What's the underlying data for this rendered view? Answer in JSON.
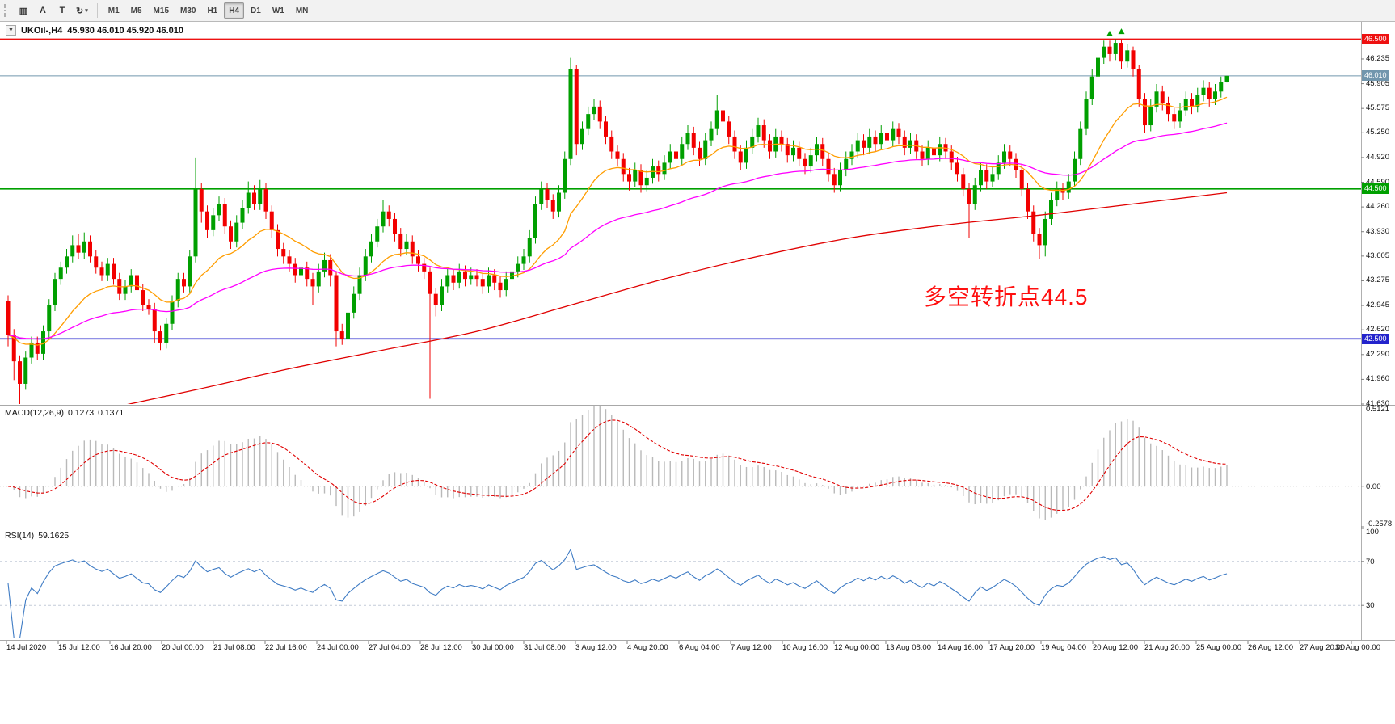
{
  "toolbar": {
    "icons": [
      {
        "name": "bar-style-icon",
        "glyph": "▥"
      },
      {
        "name": "text-annotation-icon",
        "glyph": "A"
      },
      {
        "name": "text-frame-icon",
        "glyph": "T"
      },
      {
        "name": "refresh-tools-icon",
        "glyph": "↻"
      }
    ],
    "caret": "▾",
    "timeframes": [
      "M1",
      "M5",
      "M15",
      "M30",
      "H1",
      "H4",
      "D1",
      "W1",
      "MN"
    ],
    "active_timeframe": "H4"
  },
  "chart_data": {
    "type": "candlestick",
    "symbol": "UKOil-",
    "timeframe": "H4",
    "readout_symbol": "UKOil-,H4",
    "readout_ohlc": "45.930 46.010 45.920 46.010",
    "collapse_glyph": "▼",
    "colors": {
      "up": "#009f00",
      "down": "#f20000"
    },
    "annotation": {
      "text": "多空转折点44.5",
      "color": "#ff0f0f"
    },
    "price_axis_ticks": [
      46.235,
      45.905,
      45.575,
      45.25,
      44.92,
      44.59,
      44.26,
      43.93,
      43.605,
      43.275,
      42.945,
      42.62,
      42.29,
      41.96,
      41.63
    ],
    "price_lines": [
      {
        "value": 46.5,
        "label": "46.500",
        "color": "#ee1111"
      },
      {
        "value": 44.5,
        "label": "44.500",
        "color": "#00a000"
      },
      {
        "value": 42.5,
        "label": "42.500",
        "color": "#2323cc"
      }
    ],
    "current_price": {
      "value": 46.01,
      "label": "46.010",
      "color": "#7296ad"
    },
    "ma_lines": [
      {
        "name": "ma-fast-orange",
        "color": "#ff9d00",
        "period": 18
      },
      {
        "name": "ma-mid-magenta",
        "color": "#ff00ff",
        "period": 55
      },
      {
        "name": "ma-slow-red",
        "color": "#e00000",
        "anchors": [
          [
            0,
            41.3
          ],
          [
            16,
            41.55
          ],
          [
            32,
            41.82
          ],
          [
            48,
            42.1
          ],
          [
            64,
            42.35
          ],
          [
            80,
            42.6
          ],
          [
            96,
            42.95
          ],
          [
            112,
            43.3
          ],
          [
            128,
            43.6
          ],
          [
            144,
            43.85
          ],
          [
            160,
            44.02
          ],
          [
            176,
            44.15
          ],
          [
            192,
            44.3
          ],
          [
            208,
            44.45
          ]
        ]
      }
    ],
    "markers": [
      {
        "index": 188,
        "price": 46.57,
        "color": "#00a000",
        "shape": "up"
      },
      {
        "index": 190,
        "price": 46.6,
        "color": "#00a000",
        "shape": "up"
      }
    ],
    "candles": [
      [
        43.0,
        43.08,
        42.4,
        42.55
      ],
      [
        42.55,
        42.63,
        41.95,
        42.2
      ],
      [
        42.2,
        42.28,
        41.63,
        41.9
      ],
      [
        41.9,
        42.33,
        41.82,
        42.25
      ],
      [
        42.25,
        42.53,
        42.17,
        42.45
      ],
      [
        42.45,
        42.53,
        42.22,
        42.3
      ],
      [
        42.3,
        42.68,
        42.22,
        42.6
      ],
      [
        42.6,
        43.03,
        42.52,
        42.95
      ],
      [
        42.95,
        43.38,
        42.87,
        43.3
      ],
      [
        43.3,
        43.53,
        43.22,
        43.45
      ],
      [
        43.45,
        43.7,
        43.37,
        43.6
      ],
      [
        43.6,
        43.88,
        43.52,
        43.75
      ],
      [
        43.75,
        43.9,
        43.57,
        43.65
      ],
      [
        43.65,
        43.92,
        43.57,
        43.8
      ],
      [
        43.8,
        43.88,
        43.52,
        43.6
      ],
      [
        43.6,
        43.68,
        43.37,
        43.45
      ],
      [
        43.45,
        43.53,
        43.27,
        43.35
      ],
      [
        43.35,
        43.58,
        43.27,
        43.5
      ],
      [
        43.5,
        43.58,
        43.22,
        43.3
      ],
      [
        43.3,
        43.38,
        43.02,
        43.1
      ],
      [
        43.1,
        43.28,
        43.02,
        43.2
      ],
      [
        43.2,
        43.43,
        43.12,
        43.35
      ],
      [
        43.35,
        43.43,
        43.07,
        43.15
      ],
      [
        43.15,
        43.23,
        42.87,
        42.95
      ],
      [
        42.95,
        43.03,
        42.82,
        42.9
      ],
      [
        42.9,
        42.98,
        42.45,
        42.6
      ],
      [
        42.6,
        42.68,
        42.35,
        42.45
      ],
      [
        42.45,
        42.78,
        42.37,
        42.7
      ],
      [
        42.7,
        43.08,
        42.62,
        43.0
      ],
      [
        43.0,
        43.38,
        42.92,
        43.3
      ],
      [
        43.3,
        43.38,
        43.12,
        43.2
      ],
      [
        43.2,
        43.68,
        43.12,
        43.6
      ],
      [
        43.6,
        44.92,
        43.52,
        44.5
      ],
      [
        44.5,
        44.58,
        44.05,
        44.2
      ],
      [
        44.2,
        44.28,
        43.85,
        43.95
      ],
      [
        43.95,
        44.25,
        43.87,
        44.15
      ],
      [
        44.15,
        44.4,
        44.07,
        44.3
      ],
      [
        44.3,
        44.38,
        43.9,
        44.0
      ],
      [
        44.0,
        44.08,
        43.7,
        43.8
      ],
      [
        43.8,
        44.15,
        43.72,
        44.05
      ],
      [
        44.05,
        44.35,
        43.97,
        44.25
      ],
      [
        44.25,
        44.6,
        44.17,
        44.45
      ],
      [
        44.45,
        44.55,
        44.22,
        44.3
      ],
      [
        44.3,
        44.62,
        44.22,
        44.5
      ],
      [
        44.5,
        44.58,
        44.1,
        44.2
      ],
      [
        44.2,
        44.28,
        43.85,
        43.95
      ],
      [
        43.95,
        44.03,
        43.6,
        43.7
      ],
      [
        43.7,
        43.78,
        43.5,
        43.6
      ],
      [
        43.6,
        43.68,
        43.4,
        43.5
      ],
      [
        43.5,
        43.58,
        43.25,
        43.35
      ],
      [
        43.35,
        43.55,
        43.27,
        43.45
      ],
      [
        43.45,
        43.53,
        43.2,
        43.3
      ],
      [
        43.3,
        43.38,
        42.95,
        43.2
      ],
      [
        43.2,
        43.5,
        43.12,
        43.4
      ],
      [
        43.4,
        43.65,
        43.32,
        43.55
      ],
      [
        43.55,
        43.63,
        43.2,
        43.35
      ],
      [
        43.35,
        43.4,
        42.4,
        42.6
      ],
      [
        42.6,
        42.7,
        42.42,
        42.5
      ],
      [
        42.5,
        42.95,
        42.42,
        42.85
      ],
      [
        42.85,
        43.2,
        42.77,
        43.1
      ],
      [
        43.1,
        43.45,
        43.02,
        43.35
      ],
      [
        43.35,
        43.7,
        43.27,
        43.6
      ],
      [
        43.6,
        43.9,
        43.52,
        43.8
      ],
      [
        43.8,
        44.1,
        43.72,
        44.0
      ],
      [
        44.0,
        44.35,
        43.92,
        44.2
      ],
      [
        44.2,
        44.28,
        44.0,
        44.1
      ],
      [
        44.1,
        44.18,
        43.8,
        43.9
      ],
      [
        43.9,
        43.98,
        43.6,
        43.7
      ],
      [
        43.7,
        43.9,
        43.62,
        43.8
      ],
      [
        43.8,
        43.88,
        43.5,
        43.6
      ],
      [
        43.6,
        43.68,
        43.4,
        43.5
      ],
      [
        43.5,
        43.58,
        43.3,
        43.4
      ],
      [
        43.4,
        43.45,
        41.7,
        43.1
      ],
      [
        43.1,
        43.18,
        42.8,
        42.95
      ],
      [
        42.95,
        43.3,
        42.87,
        43.2
      ],
      [
        43.2,
        43.45,
        43.12,
        43.35
      ],
      [
        43.35,
        43.43,
        43.15,
        43.25
      ],
      [
        43.25,
        43.5,
        43.17,
        43.4
      ],
      [
        43.4,
        43.48,
        43.2,
        43.3
      ],
      [
        43.3,
        43.45,
        43.22,
        43.35
      ],
      [
        43.35,
        43.43,
        43.2,
        43.3
      ],
      [
        43.3,
        43.38,
        43.1,
        43.2
      ],
      [
        43.2,
        43.45,
        43.12,
        43.35
      ],
      [
        43.35,
        43.43,
        43.15,
        43.25
      ],
      [
        43.25,
        43.33,
        43.05,
        43.15
      ],
      [
        43.15,
        43.4,
        43.07,
        43.3
      ],
      [
        43.3,
        43.5,
        43.22,
        43.4
      ],
      [
        43.4,
        43.6,
        43.32,
        43.5
      ],
      [
        43.5,
        43.7,
        43.42,
        43.6
      ],
      [
        43.6,
        43.95,
        43.52,
        43.85
      ],
      [
        43.85,
        44.4,
        43.77,
        44.3
      ],
      [
        44.3,
        44.6,
        44.22,
        44.5
      ],
      [
        44.5,
        44.58,
        44.25,
        44.35
      ],
      [
        44.35,
        44.43,
        44.1,
        44.2
      ],
      [
        44.2,
        44.55,
        44.12,
        44.45
      ],
      [
        44.45,
        45.0,
        44.37,
        44.9
      ],
      [
        44.9,
        46.25,
        44.82,
        46.1
      ],
      [
        46.1,
        46.15,
        44.95,
        45.1
      ],
      [
        45.1,
        45.4,
        45.02,
        45.3
      ],
      [
        45.3,
        45.6,
        45.22,
        45.5
      ],
      [
        45.5,
        45.7,
        45.42,
        45.6
      ],
      [
        45.6,
        45.68,
        45.3,
        45.4
      ],
      [
        45.4,
        45.48,
        45.1,
        45.2
      ],
      [
        45.2,
        45.28,
        44.9,
        45.0
      ],
      [
        45.0,
        45.08,
        44.8,
        44.9
      ],
      [
        44.9,
        44.98,
        44.6,
        44.7
      ],
      [
        44.7,
        44.78,
        44.48,
        44.6
      ],
      [
        44.6,
        44.85,
        44.52,
        44.75
      ],
      [
        44.75,
        44.83,
        44.45,
        44.55
      ],
      [
        44.55,
        44.75,
        44.47,
        44.65
      ],
      [
        44.65,
        44.9,
        44.57,
        44.8
      ],
      [
        44.8,
        44.88,
        44.6,
        44.7
      ],
      [
        44.7,
        44.95,
        44.62,
        44.85
      ],
      [
        44.85,
        45.1,
        44.77,
        45.0
      ],
      [
        45.0,
        45.08,
        44.8,
        44.9
      ],
      [
        44.9,
        45.2,
        44.82,
        45.1
      ],
      [
        45.1,
        45.35,
        45.02,
        45.25
      ],
      [
        45.25,
        45.33,
        44.95,
        45.05
      ],
      [
        45.05,
        45.13,
        44.8,
        44.9
      ],
      [
        44.9,
        45.25,
        44.82,
        45.15
      ],
      [
        45.15,
        45.4,
        45.07,
        45.3
      ],
      [
        45.3,
        45.75,
        45.22,
        45.55
      ],
      [
        45.55,
        45.63,
        45.3,
        45.4
      ],
      [
        45.4,
        45.48,
        45.1,
        45.2
      ],
      [
        45.2,
        45.28,
        44.9,
        45.0
      ],
      [
        45.0,
        45.08,
        44.75,
        44.85
      ],
      [
        44.85,
        45.15,
        44.77,
        45.05
      ],
      [
        45.05,
        45.3,
        44.97,
        45.2
      ],
      [
        45.2,
        45.45,
        45.12,
        45.35
      ],
      [
        45.35,
        45.43,
        45.05,
        45.15
      ],
      [
        45.15,
        45.23,
        44.9,
        45.0
      ],
      [
        45.0,
        45.3,
        44.92,
        45.2
      ],
      [
        45.2,
        45.28,
        45.0,
        45.1
      ],
      [
        45.1,
        45.18,
        44.85,
        44.95
      ],
      [
        44.95,
        45.15,
        44.87,
        45.05
      ],
      [
        45.05,
        45.13,
        44.8,
        44.9
      ],
      [
        44.9,
        44.98,
        44.7,
        44.8
      ],
      [
        44.8,
        45.05,
        44.72,
        44.95
      ],
      [
        44.95,
        45.2,
        44.87,
        45.1
      ],
      [
        45.1,
        45.18,
        44.8,
        44.9
      ],
      [
        44.9,
        44.98,
        44.6,
        44.7
      ],
      [
        44.7,
        44.78,
        44.45,
        44.55
      ],
      [
        44.55,
        44.85,
        44.47,
        44.75
      ],
      [
        44.75,
        45.0,
        44.67,
        44.9
      ],
      [
        44.9,
        45.1,
        44.82,
        45.0
      ],
      [
        45.0,
        45.25,
        44.92,
        45.15
      ],
      [
        45.15,
        45.23,
        44.95,
        45.05
      ],
      [
        45.05,
        45.3,
        44.97,
        45.2
      ],
      [
        45.2,
        45.28,
        45.0,
        45.1
      ],
      [
        45.1,
        45.35,
        45.02,
        45.25
      ],
      [
        45.25,
        45.33,
        45.05,
        45.15
      ],
      [
        45.15,
        45.4,
        45.07,
        45.3
      ],
      [
        45.3,
        45.38,
        45.1,
        45.2
      ],
      [
        45.2,
        45.28,
        44.95,
        45.05
      ],
      [
        45.05,
        45.25,
        44.97,
        45.15
      ],
      [
        45.15,
        45.23,
        44.9,
        45.0
      ],
      [
        45.0,
        45.08,
        44.8,
        44.9
      ],
      [
        44.9,
        45.15,
        44.82,
        45.05
      ],
      [
        45.05,
        45.13,
        44.85,
        44.95
      ],
      [
        44.95,
        45.2,
        44.87,
        45.1
      ],
      [
        45.1,
        45.18,
        44.9,
        45.0
      ],
      [
        45.0,
        45.08,
        44.75,
        44.85
      ],
      [
        44.85,
        44.93,
        44.6,
        44.7
      ],
      [
        44.7,
        44.78,
        44.4,
        44.5
      ],
      [
        44.5,
        44.58,
        43.85,
        44.3
      ],
      [
        44.3,
        44.65,
        44.22,
        44.55
      ],
      [
        44.55,
        44.85,
        44.47,
        44.75
      ],
      [
        44.75,
        44.83,
        44.5,
        44.6
      ],
      [
        44.6,
        44.8,
        44.52,
        44.7
      ],
      [
        44.7,
        44.95,
        44.62,
        44.85
      ],
      [
        44.85,
        45.1,
        44.77,
        45.0
      ],
      [
        45.0,
        45.08,
        44.8,
        44.9
      ],
      [
        44.9,
        44.98,
        44.65,
        44.75
      ],
      [
        44.75,
        44.83,
        44.4,
        44.5
      ],
      [
        44.5,
        44.58,
        44.1,
        44.2
      ],
      [
        44.2,
        44.28,
        43.8,
        43.9
      ],
      [
        43.9,
        43.98,
        43.57,
        43.75
      ],
      [
        43.75,
        44.2,
        43.6,
        44.1
      ],
      [
        44.1,
        44.45,
        44.02,
        44.35
      ],
      [
        44.35,
        44.6,
        44.27,
        44.5
      ],
      [
        44.5,
        44.58,
        44.35,
        44.45
      ],
      [
        44.45,
        44.7,
        44.37,
        44.6
      ],
      [
        44.6,
        45.0,
        44.52,
        44.9
      ],
      [
        44.9,
        45.4,
        44.82,
        45.3
      ],
      [
        45.3,
        45.8,
        45.22,
        45.7
      ],
      [
        45.7,
        46.1,
        45.62,
        46.0
      ],
      [
        46.0,
        46.35,
        45.92,
        46.25
      ],
      [
        46.25,
        46.48,
        46.17,
        46.4
      ],
      [
        46.4,
        46.48,
        46.2,
        46.3
      ],
      [
        46.3,
        46.5,
        46.22,
        46.45
      ],
      [
        46.45,
        46.5,
        46.1,
        46.2
      ],
      [
        46.2,
        46.43,
        46.12,
        46.35
      ],
      [
        46.35,
        46.4,
        46.0,
        46.1
      ],
      [
        46.1,
        46.15,
        45.6,
        45.7
      ],
      [
        45.7,
        45.78,
        45.25,
        45.35
      ],
      [
        45.35,
        45.7,
        45.27,
        45.6
      ],
      [
        45.6,
        45.9,
        45.52,
        45.8
      ],
      [
        45.8,
        45.88,
        45.55,
        45.65
      ],
      [
        45.65,
        45.73,
        45.4,
        45.5
      ],
      [
        45.5,
        45.58,
        45.3,
        45.4
      ],
      [
        45.4,
        45.65,
        45.32,
        45.55
      ],
      [
        45.55,
        45.8,
        45.47,
        45.7
      ],
      [
        45.7,
        45.78,
        45.5,
        45.6
      ],
      [
        45.6,
        45.85,
        45.52,
        45.75
      ],
      [
        45.75,
        45.95,
        45.67,
        45.85
      ],
      [
        45.85,
        45.93,
        45.6,
        45.7
      ],
      [
        45.7,
        45.9,
        45.62,
        45.8
      ],
      [
        45.8,
        46.0,
        45.72,
        45.93
      ],
      [
        45.93,
        46.01,
        45.92,
        46.01
      ]
    ],
    "time_labels": [
      "14 Jul 2020",
      "15 Jul 12:00",
      "16 Jul 20:00",
      "20 Jul 00:00",
      "21 Jul 08:00",
      "22 Jul 16:00",
      "24 Jul 00:00",
      "27 Jul 04:00",
      "28 Jul 12:00",
      "30 Jul 00:00",
      "31 Jul 08:00",
      "3 Aug 12:00",
      "4 Aug 20:00",
      "6 Aug 04:00",
      "7 Aug 12:00",
      "10 Aug 16:00",
      "12 Aug 00:00",
      "13 Aug 08:00",
      "14 Aug 16:00",
      "17 Aug 20:00",
      "19 Aug 04:00",
      "20 Aug 12:00",
      "21 Aug 20:00",
      "25 Aug 00:00",
      "26 Aug 12:00",
      "27 Aug 20:00",
      "31 Aug 00:00"
    ],
    "macd": {
      "label": "MACD(12,26,9)",
      "value_main": "0.1273",
      "value_signal": "0.1371",
      "axis_values": [
        0.5121,
        0,
        -0.2578
      ],
      "axis_labels": [
        "0.5121",
        "0.00",
        "-0.2578"
      ],
      "histogram_color": "#b9b9b9",
      "signal_color": "#e00000"
    },
    "rsi": {
      "label": "RSI(14)",
      "value": "59.1625",
      "axis_values": [
        100,
        70,
        30
      ],
      "axis_labels": [
        "100",
        "70",
        "30"
      ],
      "levels": [
        70,
        30
      ],
      "line_color": "#3e7bc4",
      "level_color": "#c4cbd8"
    }
  }
}
